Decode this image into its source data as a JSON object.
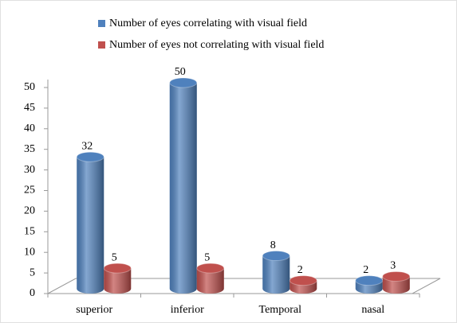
{
  "chart_data": {
    "type": "bar",
    "categories": [
      "superior",
      "inferior",
      "Temporal",
      "nasal"
    ],
    "series": [
      {
        "name": "Number of eyes correlating with visual field",
        "color": "#4f81bd",
        "values": [
          32,
          50,
          8,
          2
        ]
      },
      {
        "name": "Number of eyes not correlating with visual field",
        "color": "#c0504d",
        "values": [
          5,
          5,
          2,
          3
        ]
      }
    ],
    "ylim": [
      0,
      50
    ],
    "yticks": [
      0,
      5,
      10,
      15,
      20,
      25,
      30,
      35,
      40,
      45,
      50
    ],
    "legend": "top"
  }
}
